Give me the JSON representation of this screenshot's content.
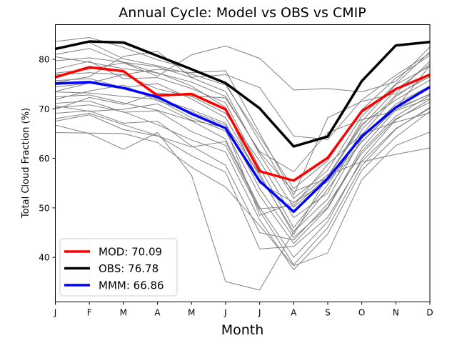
{
  "chart_data": {
    "type": "line",
    "title": "Annual Cycle: Model vs OBS vs CMIP",
    "xlabel": "Month",
    "ylabel": "Total Cloud Fraction (%)",
    "categories": [
      "J",
      "F",
      "M",
      "A",
      "M",
      "J",
      "J",
      "A",
      "S",
      "O",
      "N",
      "D"
    ],
    "ylim": [
      31,
      87
    ],
    "yticks": [
      40,
      50,
      60,
      70,
      80
    ],
    "legend_position": "bottom-left",
    "series": [
      {
        "name": "MOD",
        "label": "MOD: 70.09",
        "color": "#ff0000",
        "values": [
          76.4,
          78.4,
          77.6,
          72.7,
          73.0,
          69.9,
          57.4,
          55.5,
          60.1,
          69.5,
          74.0,
          76.9
        ]
      },
      {
        "name": "OBS",
        "label": "OBS: 76.78",
        "color": "#000000",
        "values": [
          82.1,
          83.6,
          83.4,
          80.7,
          78.0,
          75.2,
          70.1,
          62.4,
          64.4,
          75.6,
          82.8,
          83.5
        ]
      },
      {
        "name": "MMM",
        "label": "MMM: 66.86",
        "color": "#0000ff",
        "values": [
          75.1,
          75.4,
          74.2,
          72.4,
          69.0,
          66.1,
          55.4,
          49.2,
          55.9,
          64.4,
          70.3,
          74.4
        ]
      }
    ],
    "cmip_models": [
      [
        83.6,
        84.4,
        82.4,
        79.9,
        78.0,
        75.2,
        63.4,
        51.9,
        57.6,
        68.5,
        75.0,
        81.5
      ],
      [
        82.0,
        83.4,
        80.1,
        78.7,
        77.0,
        74.8,
        64.4,
        53.9,
        59.5,
        69.8,
        76.2,
        80.8
      ],
      [
        81.0,
        82.2,
        79.4,
        78.5,
        76.3,
        73.5,
        60.8,
        50.1,
        56.3,
        66.5,
        73.8,
        79.0
      ],
      [
        79.7,
        80.3,
        79.4,
        77.2,
        75.4,
        72.5,
        61.2,
        53.3,
        56.0,
        67.5,
        74.9,
        78.6
      ],
      [
        78.0,
        79.6,
        76.1,
        76.3,
        74.1,
        71.2,
        58.1,
        46.0,
        54.7,
        64.8,
        72.5,
        77.0
      ],
      [
        76.9,
        77.3,
        76.9,
        74.0,
        72.5,
        69.1,
        59.5,
        48.0,
        53.0,
        65.8,
        72.8,
        76.5
      ],
      [
        75.7,
        76.1,
        74.3,
        75.1,
        72.0,
        68.2,
        56.4,
        45.2,
        51.8,
        64.0,
        71.0,
        74.6
      ],
      [
        74.4,
        75.2,
        74.1,
        72.1,
        69.8,
        67.1,
        53.9,
        44.0,
        50.1,
        62.1,
        69.8,
        73.0
      ],
      [
        73.4,
        73.2,
        72.5,
        71.9,
        68.2,
        65.5,
        52.5,
        42.8,
        49.9,
        61.5,
        68.5,
        72.7
      ],
      [
        72.4,
        72.8,
        71.2,
        69.7,
        67.6,
        63.9,
        50.1,
        40.0,
        47.2,
        59.9,
        67.8,
        71.9
      ],
      [
        71.1,
        71.6,
        69.3,
        69.6,
        65.4,
        62.6,
        49.4,
        38.5,
        46.0,
        58.5,
        65.9,
        70.3
      ],
      [
        70.2,
        70.8,
        69.4,
        66.8,
        63.7,
        61.3,
        47.6,
        37.5,
        44.7,
        57.6,
        64.3,
        69.5
      ],
      [
        69.1,
        69.6,
        67.1,
        67.5,
        62.5,
        58.6,
        45.0,
        43.5,
        50.8,
        61.0,
        68.0,
        71.3
      ],
      [
        68.0,
        69.1,
        66.8,
        64.6,
        60.5,
        57.2,
        41.7,
        42.2,
        48.1,
        59.4,
        66.0,
        70.1
      ],
      [
        66.7,
        65.0,
        61.8,
        65.2,
        56.6,
        35.1,
        33.4,
        45.2,
        53.8,
        63.4,
        70.1,
        72.9
      ],
      [
        65.2,
        65.1,
        65.0,
        63.2,
        58.2,
        54.2,
        46.4,
        38.3,
        40.9,
        55.7,
        62.6,
        65.3
      ],
      [
        77.2,
        78.0,
        79.3,
        76.6,
        80.9,
        82.7,
        80.2,
        73.8,
        74.1,
        73.4,
        75.5,
        82.5
      ],
      [
        75.3,
        76.5,
        80.6,
        81.6,
        76.4,
        76.9,
        74.3,
        64.5,
        63.8,
        71.8,
        76.8,
        81.2
      ],
      [
        73.5,
        75.2,
        76.9,
        78.0,
        77.3,
        77.7,
        65.1,
        52.6,
        68.2,
        71.5,
        73.1,
        79.6
      ],
      [
        69.9,
        72.3,
        70.9,
        73.2,
        72.6,
        72.2,
        61.4,
        57.3,
        65.2,
        67.8,
        69.6,
        72.1
      ],
      [
        80.5,
        79.4,
        78.1,
        77.3,
        74.6,
        70.3,
        55.0,
        51.1,
        55.3,
        63.3,
        70.1,
        78.7
      ],
      [
        70.6,
        69.5,
        69.9,
        71.0,
        67.7,
        66.2,
        48.5,
        51.0,
        56.7,
        59.3,
        60.8,
        62.1
      ],
      [
        67.5,
        68.8,
        65.8,
        64.5,
        62.3,
        63.4,
        49.8,
        50.4,
        58.8,
        64.9,
        67.3,
        69.2
      ],
      [
        71.9,
        73.6,
        74.8,
        71.6,
        69.4,
        66.7,
        56.9,
        44.6,
        56.4,
        66.9,
        71.8,
        75.8
      ]
    ]
  }
}
